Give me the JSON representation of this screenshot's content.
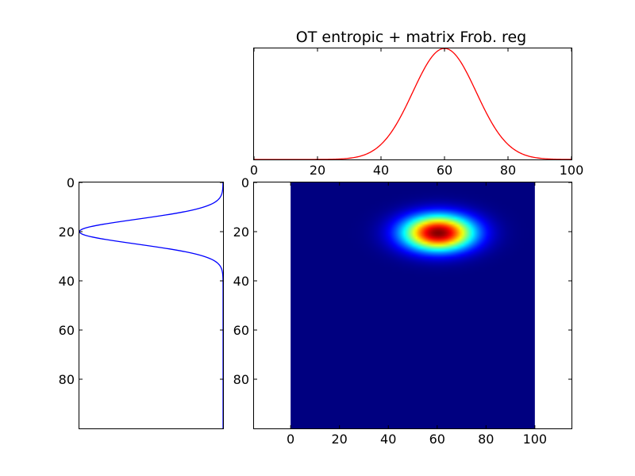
{
  "title": "OT entropic + matrix Frob. reg",
  "chart_data": [
    {
      "name": "target-marginal",
      "type": "line",
      "title": "OT entropic + matrix Frob. reg",
      "xlim": [
        0,
        100
      ],
      "xticks": [
        "0",
        "20",
        "40",
        "60",
        "80",
        "100"
      ],
      "series": [
        {
          "distribution": "gaussian",
          "mean": 60,
          "std": 10,
          "color": "#ff0000"
        }
      ]
    },
    {
      "name": "source-marginal",
      "type": "line",
      "orientation": "vertical",
      "ylim": [
        100,
        0
      ],
      "yticks": [
        "0",
        "20",
        "40",
        "60",
        "80"
      ],
      "series": [
        {
          "distribution": "gaussian",
          "mean": 20,
          "std": 5,
          "color": "#0000ff"
        }
      ]
    },
    {
      "name": "transport-plan",
      "type": "heatmap",
      "colormap": "jet",
      "rows": 100,
      "cols": 100,
      "peak": {
        "row": 20,
        "col": 60
      },
      "row_std": 5,
      "col_std": 10,
      "xlim": [
        -15,
        115
      ],
      "ylim": [
        100,
        0
      ],
      "xticks": [
        "0",
        "20",
        "40",
        "60",
        "80",
        "100"
      ],
      "yticks": [
        "0",
        "20",
        "40",
        "60",
        "80"
      ]
    }
  ]
}
